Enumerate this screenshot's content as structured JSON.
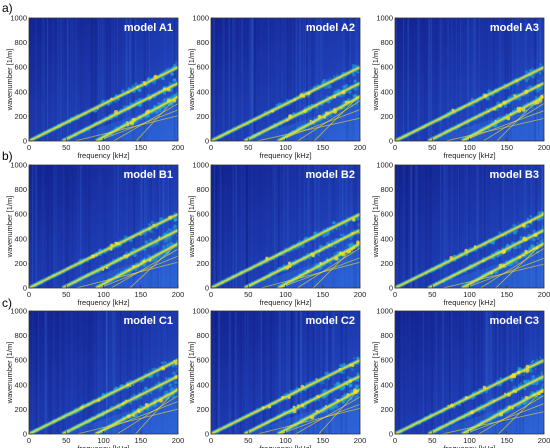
{
  "rows": [
    {
      "label": "a)"
    },
    {
      "label": "b)"
    },
    {
      "label": "c)"
    }
  ],
  "colors": {
    "background": "#1a2a9c",
    "low": "#2f6fe0",
    "mid": "#1fb6d9",
    "high": "#ffe21a",
    "peak": "#ffffff",
    "model_label": "#ffffff"
  },
  "chart_data": [
    {
      "type": "heatmap",
      "title": "model A1",
      "xlabel": "frequency [kHz]",
      "ylabel": "wavenumber [1/m]",
      "xlim": [
        0,
        200
      ],
      "ylim": [
        0,
        1000
      ],
      "xticks": [
        0,
        50,
        100,
        150,
        200
      ],
      "yticks": [
        0,
        200,
        400,
        600,
        800,
        1000
      ],
      "modes": [
        {
          "x": [
            0,
            200
          ],
          "y": [
            0,
            600
          ]
        },
        {
          "x": [
            45,
            200
          ],
          "y": [
            0,
            470
          ]
        },
        {
          "x": [
            90,
            200
          ],
          "y": [
            0,
            360
          ]
        }
      ],
      "colormap": "jet"
    },
    {
      "type": "heatmap",
      "title": "model A2",
      "xlabel": "frequency [kHz]",
      "ylabel": "wavenumber [1/m]",
      "xlim": [
        0,
        200
      ],
      "ylim": [
        0,
        1000
      ],
      "xticks": [
        0,
        50,
        100,
        150,
        200
      ],
      "yticks": [
        0,
        200,
        400,
        600,
        800,
        1000
      ],
      "modes": [
        {
          "x": [
            0,
            200
          ],
          "y": [
            0,
            600
          ]
        },
        {
          "x": [
            45,
            200
          ],
          "y": [
            0,
            470
          ]
        },
        {
          "x": [
            90,
            200
          ],
          "y": [
            0,
            360
          ]
        }
      ],
      "colormap": "jet"
    },
    {
      "type": "heatmap",
      "title": "model A3",
      "xlabel": "frequency [kHz]",
      "ylabel": "wavenumber [1/m]",
      "xlim": [
        0,
        200
      ],
      "ylim": [
        0,
        1000
      ],
      "xticks": [
        0,
        50,
        100,
        150,
        200
      ],
      "yticks": [
        0,
        200,
        400,
        600,
        800,
        1000
      ],
      "modes": [
        {
          "x": [
            0,
            200
          ],
          "y": [
            0,
            600
          ]
        },
        {
          "x": [
            45,
            200
          ],
          "y": [
            0,
            470
          ]
        },
        {
          "x": [
            90,
            200
          ],
          "y": [
            0,
            360
          ]
        }
      ],
      "colormap": "jet"
    },
    {
      "type": "heatmap",
      "title": "model B1",
      "xlabel": "frequency [kHz]",
      "ylabel": "wavenumber [1/m]",
      "xlim": [
        0,
        200
      ],
      "ylim": [
        0,
        1000
      ],
      "xticks": [
        0,
        50,
        100,
        150,
        200
      ],
      "yticks": [
        0,
        200,
        400,
        600,
        800,
        1000
      ],
      "modes": [
        {
          "x": [
            0,
            200
          ],
          "y": [
            0,
            600
          ]
        },
        {
          "x": [
            45,
            200
          ],
          "y": [
            0,
            470
          ]
        },
        {
          "x": [
            90,
            200
          ],
          "y": [
            0,
            360
          ]
        }
      ],
      "colormap": "jet"
    },
    {
      "type": "heatmap",
      "title": "model B2",
      "xlabel": "frequency [kHz]",
      "ylabel": "wavenumber [1/m]",
      "xlim": [
        0,
        200
      ],
      "ylim": [
        0,
        1000
      ],
      "xticks": [
        0,
        50,
        100,
        150,
        200
      ],
      "yticks": [
        0,
        200,
        400,
        600,
        800,
        1000
      ],
      "modes": [
        {
          "x": [
            0,
            200
          ],
          "y": [
            0,
            600
          ]
        },
        {
          "x": [
            45,
            200
          ],
          "y": [
            0,
            470
          ]
        },
        {
          "x": [
            90,
            200
          ],
          "y": [
            0,
            360
          ]
        }
      ],
      "colormap": "jet"
    },
    {
      "type": "heatmap",
      "title": "model B3",
      "xlabel": "frequency [kHz]",
      "ylabel": "wavenumber [1/m]",
      "xlim": [
        0,
        200
      ],
      "ylim": [
        0,
        1000
      ],
      "xticks": [
        0,
        50,
        100,
        150,
        200
      ],
      "yticks": [
        0,
        200,
        400,
        600,
        800,
        1000
      ],
      "modes": [
        {
          "x": [
            0,
            200
          ],
          "y": [
            0,
            600
          ]
        },
        {
          "x": [
            45,
            200
          ],
          "y": [
            0,
            470
          ]
        },
        {
          "x": [
            90,
            200
          ],
          "y": [
            0,
            360
          ]
        }
      ],
      "colormap": "jet"
    },
    {
      "type": "heatmap",
      "title": "model C1",
      "xlabel": "frequency [kHz]",
      "ylabel": "wavenumber [1/m]",
      "xlim": [
        0,
        200
      ],
      "ylim": [
        0,
        1000
      ],
      "xticks": [
        0,
        50,
        100,
        150,
        200
      ],
      "yticks": [
        0,
        200,
        400,
        600,
        800,
        1000
      ],
      "modes": [
        {
          "x": [
            0,
            200
          ],
          "y": [
            0,
            600
          ]
        },
        {
          "x": [
            45,
            200
          ],
          "y": [
            0,
            470
          ]
        },
        {
          "x": [
            90,
            200
          ],
          "y": [
            0,
            360
          ]
        }
      ],
      "colormap": "jet"
    },
    {
      "type": "heatmap",
      "title": "model C2",
      "xlabel": "frequency [kHz]",
      "ylabel": "wavenumber [1/m]",
      "xlim": [
        0,
        200
      ],
      "ylim": [
        0,
        1000
      ],
      "xticks": [
        0,
        50,
        100,
        150,
        200
      ],
      "yticks": [
        0,
        200,
        400,
        600,
        800,
        1000
      ],
      "modes": [
        {
          "x": [
            0,
            200
          ],
          "y": [
            0,
            600
          ]
        },
        {
          "x": [
            45,
            200
          ],
          "y": [
            0,
            470
          ]
        },
        {
          "x": [
            90,
            200
          ],
          "y": [
            0,
            360
          ]
        }
      ],
      "colormap": "jet"
    },
    {
      "type": "heatmap",
      "title": "model C3",
      "xlabel": "frequency [kHz]",
      "ylabel": "wavenumber [1/m]",
      "xlim": [
        0,
        200
      ],
      "ylim": [
        0,
        1000
      ],
      "xticks": [
        0,
        50,
        100,
        150,
        200
      ],
      "yticks": [
        0,
        200,
        400,
        600,
        800,
        1000
      ],
      "modes": [
        {
          "x": [
            0,
            200
          ],
          "y": [
            0,
            600
          ]
        },
        {
          "x": [
            45,
            200
          ],
          "y": [
            0,
            470
          ]
        },
        {
          "x": [
            90,
            200
          ],
          "y": [
            0,
            360
          ]
        }
      ],
      "colormap": "jet"
    }
  ]
}
